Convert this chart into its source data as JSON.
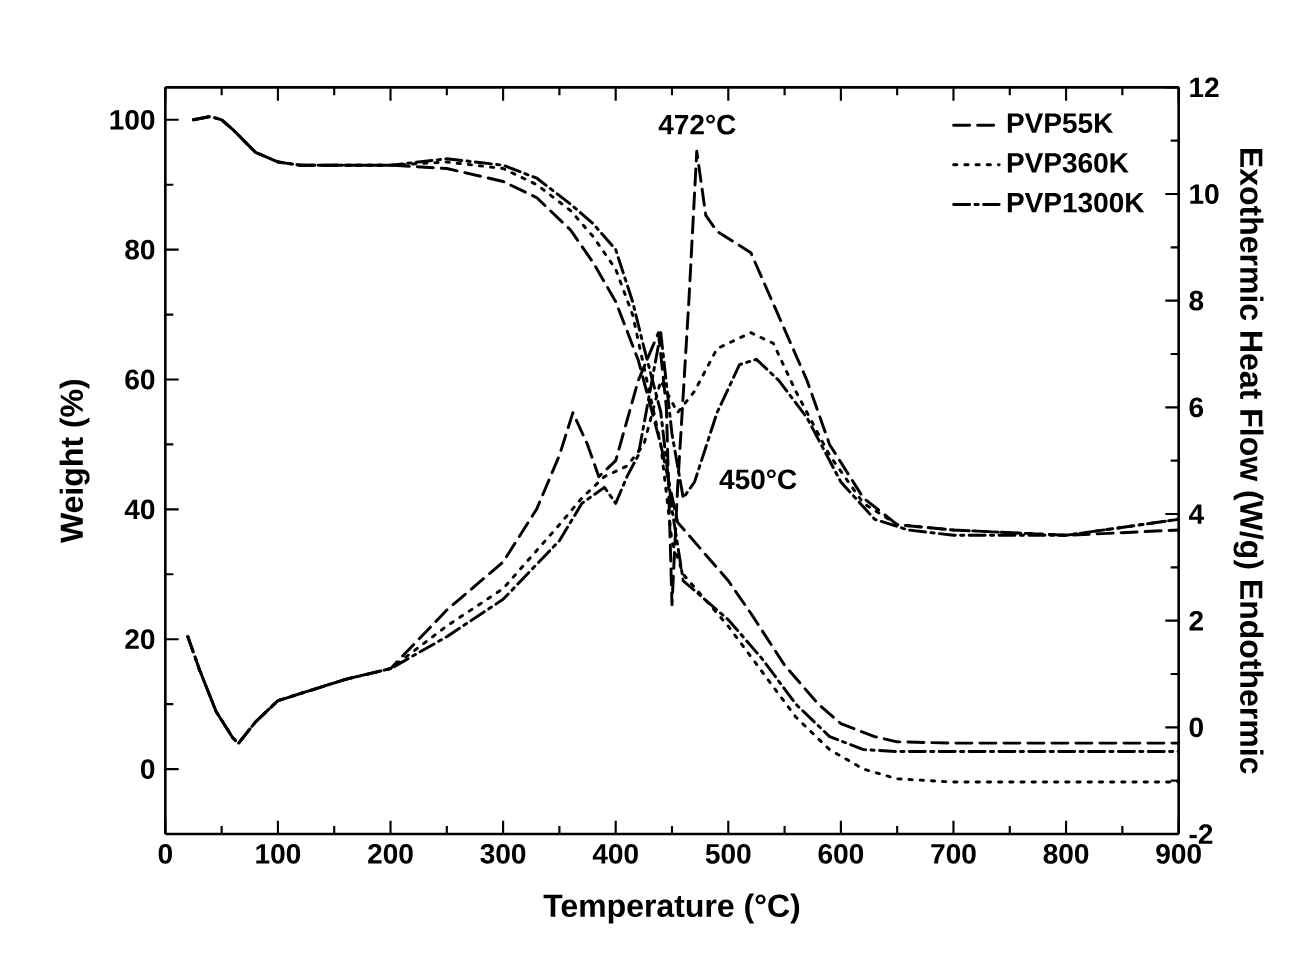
{
  "chart_data": {
    "type": "line",
    "xlabel": "Temperature (°C)",
    "ylabel": "Weight (%)",
    "y2label": "Exothermic  Heat Flow (W/g)  Endothermic",
    "xlim": [
      0,
      900
    ],
    "xticks": [
      0,
      100,
      200,
      300,
      400,
      500,
      600,
      700,
      800,
      900
    ],
    "ylim": [
      -10,
      105
    ],
    "yticks": [
      0,
      20,
      40,
      60,
      80,
      100
    ],
    "y2lim": [
      -2,
      12
    ],
    "y2ticks": [
      -2,
      0,
      2,
      4,
      6,
      8,
      10,
      12
    ],
    "legend": "top right",
    "grid": false,
    "marker": "none",
    "annotations": [
      "472°C",
      "450°C"
    ],
    "series": [
      {
        "name": "PVP55K",
        "color": "#000000",
        "line_style": "dashed",
        "x": [
          25,
          40,
          50,
          60,
          80,
          100,
          120,
          150,
          200,
          250,
          300,
          330,
          360,
          380,
          400,
          420,
          440,
          455,
          470,
          500,
          520,
          550,
          580,
          600,
          630,
          650,
          700,
          900
        ],
        "values": [
          100,
          100.5,
          100,
          98.5,
          95,
          93.5,
          93,
          93,
          93,
          92.5,
          90.5,
          88,
          83,
          78,
          72,
          63,
          50,
          38,
          35,
          29,
          24,
          16,
          10,
          7,
          5,
          4.2,
          4,
          4
        ]
      },
      {
        "name": "PVP360K",
        "color": "#000000",
        "line_style": "dotted",
        "x": [
          25,
          40,
          50,
          60,
          80,
          100,
          120,
          150,
          200,
          250,
          300,
          330,
          360,
          380,
          400,
          415,
          425,
          440,
          450,
          460,
          480,
          500,
          530,
          560,
          590,
          620,
          650,
          700,
          900
        ],
        "values": [
          100,
          100.5,
          100,
          98.5,
          95,
          93.5,
          93,
          93,
          93,
          93.5,
          92.5,
          90,
          86,
          82,
          77,
          70,
          62,
          50,
          35,
          30,
          26,
          22,
          15,
          8,
          3,
          0,
          -1.5,
          -2,
          -2
        ]
      },
      {
        "name": "PVP1300K",
        "color": "#000000",
        "line_style": "dashdot",
        "x": [
          25,
          40,
          50,
          60,
          80,
          100,
          120,
          150,
          200,
          250,
          300,
          330,
          360,
          380,
          400,
          415,
          425,
          440,
          450,
          460,
          480,
          500,
          530,
          560,
          590,
          620,
          650,
          700,
          900
        ],
        "values": [
          100,
          100.5,
          100,
          98.5,
          95,
          93.5,
          93,
          93,
          93,
          94,
          93,
          91,
          87,
          84,
          80,
          72,
          65,
          55,
          40,
          29,
          26,
          23,
          17,
          10,
          5,
          3,
          2.7,
          2.7,
          2.7
        ]
      },
      {
        "color": "#000000",
        "line_style": "dashed",
        "axis": "y2",
        "x": [
          20,
          30,
          45,
          60,
          65,
          80,
          100,
          130,
          160,
          200,
          250,
          300,
          330,
          350,
          362,
          375,
          385,
          400,
          420,
          438,
          445,
          450,
          455,
          465,
          472,
          480,
          490,
          520,
          545,
          570,
          590,
          620,
          650,
          700,
          800,
          900
        ],
        "values": [
          1.7,
          1.1,
          0.3,
          -0.2,
          -0.3,
          0.1,
          0.5,
          0.7,
          0.9,
          1.1,
          2.2,
          3.1,
          4.1,
          5.1,
          5.9,
          5.3,
          4.7,
          5.0,
          6.5,
          7.4,
          6.0,
          2.3,
          4.5,
          8.0,
          10.8,
          9.6,
          9.3,
          8.9,
          7.7,
          6.5,
          5.3,
          4.3,
          3.8,
          3.7,
          3.6,
          3.7
        ]
      },
      {
        "color": "#000000",
        "line_style": "dotted",
        "axis": "y2",
        "x": [
          20,
          30,
          45,
          60,
          65,
          80,
          100,
          130,
          160,
          200,
          250,
          300,
          350,
          370,
          390,
          410,
          425,
          440,
          455,
          470,
          490,
          520,
          540,
          560,
          590,
          620,
          650,
          700,
          800,
          900
        ],
        "values": [
          1.7,
          1.1,
          0.3,
          -0.2,
          -0.3,
          0.1,
          0.5,
          0.7,
          0.9,
          1.1,
          1.9,
          2.6,
          3.8,
          4.3,
          4.7,
          4.9,
          5.3,
          6.5,
          5.9,
          6.3,
          7.1,
          7.4,
          7.2,
          6.3,
          5.1,
          4.2,
          3.8,
          3.7,
          3.6,
          3.9
        ]
      },
      {
        "color": "#000000",
        "line_style": "dashdot",
        "axis": "y2",
        "x": [
          20,
          30,
          45,
          60,
          65,
          80,
          100,
          130,
          160,
          200,
          250,
          300,
          350,
          370,
          390,
          400,
          410,
          420,
          440,
          450,
          460,
          470,
          490,
          510,
          525,
          545,
          570,
          600,
          630,
          660,
          700,
          800,
          900
        ],
        "values": [
          1.7,
          1.1,
          0.3,
          -0.2,
          -0.3,
          0.1,
          0.5,
          0.7,
          0.9,
          1.1,
          1.7,
          2.4,
          3.5,
          4.2,
          4.5,
          4.2,
          4.7,
          5.1,
          7.4,
          5.5,
          4.3,
          4.6,
          5.9,
          6.8,
          6.9,
          6.5,
          5.8,
          4.6,
          3.9,
          3.7,
          3.6,
          3.6,
          3.9
        ]
      }
    ]
  }
}
